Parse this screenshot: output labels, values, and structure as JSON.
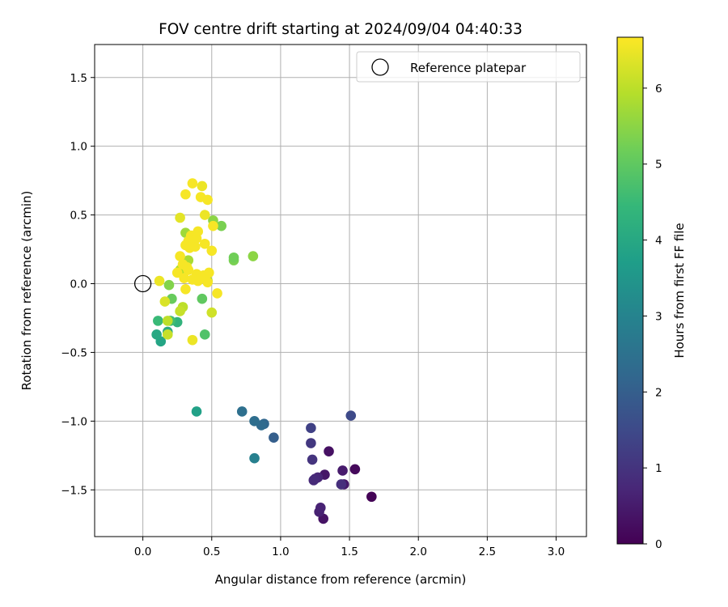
{
  "chart_data": {
    "type": "scatter",
    "title": "FOV centre drift starting at 2024/09/04 04:40:33",
    "xlabel": "Angular distance from reference (arcmin)",
    "ylabel": "Rotation from reference (arcmin)",
    "xlim": [
      -0.35,
      3.22
    ],
    "ylim": [
      -1.84,
      1.74
    ],
    "xticks": [
      0.0,
      0.5,
      1.0,
      1.5,
      2.0,
      2.5,
      3.0
    ],
    "xtick_labels": [
      "0.0",
      "0.5",
      "1.0",
      "1.5",
      "2.0",
      "2.5",
      "3.0"
    ],
    "yticks": [
      -1.5,
      -1.0,
      -0.5,
      0.0,
      0.5,
      1.0,
      1.5
    ],
    "ytick_labels": [
      "−1.5",
      "−1.0",
      "−0.5",
      "0.0",
      "0.5",
      "1.0",
      "1.5"
    ],
    "grid": true,
    "legend": {
      "position": "top-right",
      "entries": [
        "Reference platepar"
      ]
    },
    "reference_point": {
      "x": 0.0,
      "y": 0.0
    },
    "colorbar": {
      "label": "Hours from first FF file",
      "range": [
        0,
        6.67
      ],
      "ticks": [
        0,
        1,
        2,
        3,
        4,
        5,
        6
      ],
      "tick_labels": [
        "0",
        "1",
        "2",
        "3",
        "4",
        "5",
        "6"
      ],
      "colormap": "viridis"
    },
    "points": [
      {
        "x": 1.66,
        "y": -1.55,
        "c": 0.05
      },
      {
        "x": 1.54,
        "y": -1.35,
        "c": 0.15
      },
      {
        "x": 1.35,
        "y": -1.22,
        "c": 0.3
      },
      {
        "x": 1.31,
        "y": -1.71,
        "c": 0.35
      },
      {
        "x": 1.32,
        "y": -1.39,
        "c": 0.4
      },
      {
        "x": 1.46,
        "y": -1.46,
        "c": 0.45
      },
      {
        "x": 1.45,
        "y": -1.36,
        "c": 0.5
      },
      {
        "x": 1.28,
        "y": -1.66,
        "c": 0.6
      },
      {
        "x": 1.29,
        "y": -1.63,
        "c": 0.65
      },
      {
        "x": 1.27,
        "y": -1.41,
        "c": 0.7
      },
      {
        "x": 1.25,
        "y": -1.42,
        "c": 0.75
      },
      {
        "x": 1.24,
        "y": -1.43,
        "c": 0.8
      },
      {
        "x": 1.44,
        "y": -1.46,
        "c": 0.9
      },
      {
        "x": 1.23,
        "y": -1.28,
        "c": 1.0
      },
      {
        "x": 1.22,
        "y": -1.16,
        "c": 1.1
      },
      {
        "x": 1.22,
        "y": -1.05,
        "c": 1.3
      },
      {
        "x": 1.51,
        "y": -0.96,
        "c": 1.5
      },
      {
        "x": 0.95,
        "y": -1.12,
        "c": 2.0
      },
      {
        "x": 0.88,
        "y": -1.02,
        "c": 2.2
      },
      {
        "x": 0.86,
        "y": -1.03,
        "c": 2.3
      },
      {
        "x": 0.81,
        "y": -1.0,
        "c": 2.4
      },
      {
        "x": 0.72,
        "y": -0.93,
        "c": 2.45
      },
      {
        "x": 0.81,
        "y": -1.27,
        "c": 2.9
      },
      {
        "x": 0.39,
        "y": -0.93,
        "c": 3.8
      },
      {
        "x": 0.13,
        "y": -0.42,
        "c": 3.9
      },
      {
        "x": 0.1,
        "y": -0.37,
        "c": 4.0
      },
      {
        "x": 0.18,
        "y": -0.35,
        "c": 4.1
      },
      {
        "x": 0.25,
        "y": -0.28,
        "c": 4.3
      },
      {
        "x": 0.11,
        "y": -0.27,
        "c": 4.5
      },
      {
        "x": 0.2,
        "y": -0.27,
        "c": 4.6
      },
      {
        "x": 0.45,
        "y": -0.37,
        "c": 4.8
      },
      {
        "x": 0.43,
        "y": -0.11,
        "c": 5.0
      },
      {
        "x": 0.21,
        "y": -0.11,
        "c": 5.1
      },
      {
        "x": 0.19,
        "y": -0.01,
        "c": 5.4
      },
      {
        "x": 0.66,
        "y": 0.17,
        "c": 5.3
      },
      {
        "x": 0.66,
        "y": 0.19,
        "c": 5.2
      },
      {
        "x": 0.8,
        "y": 0.2,
        "c": 5.5
      },
      {
        "x": 0.57,
        "y": 0.42,
        "c": 5.3
      },
      {
        "x": 0.51,
        "y": 0.46,
        "c": 5.5
      },
      {
        "x": 0.31,
        "y": 0.37,
        "c": 5.7
      },
      {
        "x": 0.33,
        "y": 0.17,
        "c": 5.8
      },
      {
        "x": 0.27,
        "y": 0.1,
        "c": 5.9
      },
      {
        "x": 0.47,
        "y": 0.02,
        "c": 5.9
      },
      {
        "x": 0.29,
        "y": -0.17,
        "c": 6.0
      },
      {
        "x": 0.18,
        "y": -0.27,
        "c": 6.0
      },
      {
        "x": 0.18,
        "y": -0.37,
        "c": 6.1
      },
      {
        "x": 0.5,
        "y": -0.21,
        "c": 6.2
      },
      {
        "x": 0.27,
        "y": -0.2,
        "c": 6.1
      },
      {
        "x": 0.16,
        "y": -0.13,
        "c": 6.3
      },
      {
        "x": 0.12,
        "y": 0.02,
        "c": 6.5
      },
      {
        "x": 0.54,
        "y": -0.07,
        "c": 6.6
      },
      {
        "x": 0.31,
        "y": -0.04,
        "c": 6.6
      },
      {
        "x": 0.36,
        "y": -0.41,
        "c": 6.5
      },
      {
        "x": 0.36,
        "y": 0.73,
        "c": 6.6
      },
      {
        "x": 0.43,
        "y": 0.71,
        "c": 6.5
      },
      {
        "x": 0.31,
        "y": 0.65,
        "c": 6.6
      },
      {
        "x": 0.42,
        "y": 0.63,
        "c": 6.6
      },
      {
        "x": 0.47,
        "y": 0.61,
        "c": 6.6
      },
      {
        "x": 0.45,
        "y": 0.5,
        "c": 6.5
      },
      {
        "x": 0.27,
        "y": 0.48,
        "c": 6.4
      },
      {
        "x": 0.51,
        "y": 0.42,
        "c": 6.6
      },
      {
        "x": 0.4,
        "y": 0.38,
        "c": 6.6
      },
      {
        "x": 0.35,
        "y": 0.35,
        "c": 6.6
      },
      {
        "x": 0.39,
        "y": 0.33,
        "c": 6.6
      },
      {
        "x": 0.33,
        "y": 0.31,
        "c": 6.6
      },
      {
        "x": 0.45,
        "y": 0.29,
        "c": 6.6
      },
      {
        "x": 0.31,
        "y": 0.28,
        "c": 6.6
      },
      {
        "x": 0.38,
        "y": 0.27,
        "c": 6.6
      },
      {
        "x": 0.34,
        "y": 0.26,
        "c": 6.6
      },
      {
        "x": 0.5,
        "y": 0.24,
        "c": 6.6
      },
      {
        "x": 0.27,
        "y": 0.2,
        "c": 6.6
      },
      {
        "x": 0.29,
        "y": 0.14,
        "c": 6.6
      },
      {
        "x": 0.32,
        "y": 0.12,
        "c": 6.6
      },
      {
        "x": 0.33,
        "y": 0.1,
        "c": 6.6
      },
      {
        "x": 0.25,
        "y": 0.08,
        "c": 6.6
      },
      {
        "x": 0.39,
        "y": 0.07,
        "c": 6.6
      },
      {
        "x": 0.48,
        "y": 0.08,
        "c": 6.6
      },
      {
        "x": 0.44,
        "y": 0.06,
        "c": 6.6
      },
      {
        "x": 0.42,
        "y": 0.04,
        "c": 6.6
      },
      {
        "x": 0.36,
        "y": 0.03,
        "c": 6.6
      },
      {
        "x": 0.3,
        "y": 0.04,
        "c": 6.6
      },
      {
        "x": 0.4,
        "y": 0.02,
        "c": 6.6
      },
      {
        "x": 0.47,
        "y": 0.01,
        "c": 6.6
      }
    ]
  }
}
